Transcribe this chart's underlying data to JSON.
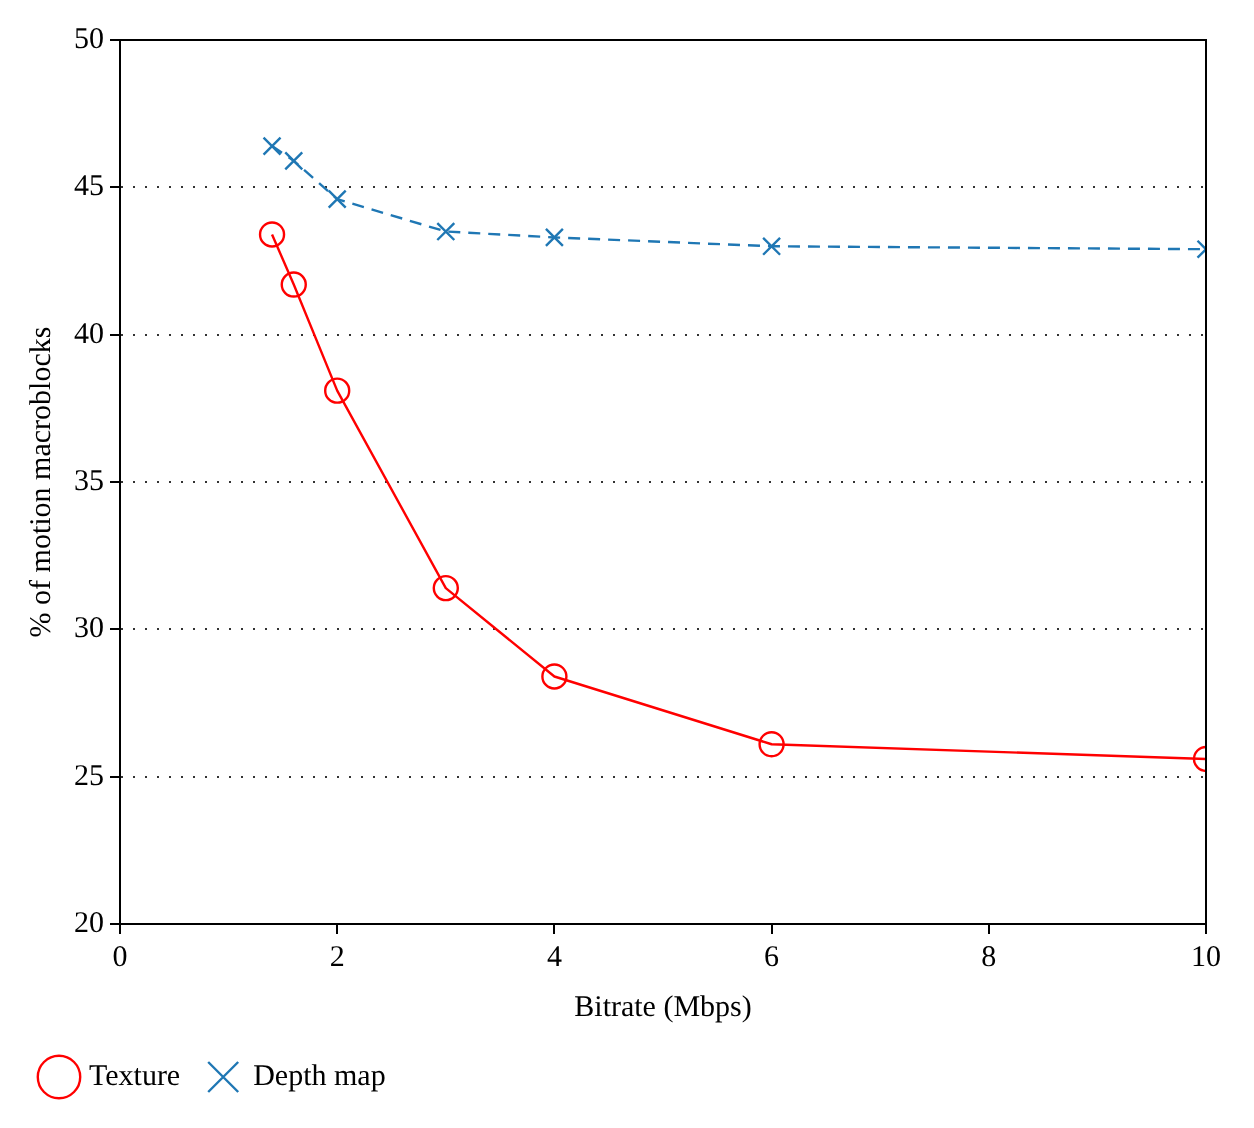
{
  "chart_data": {
    "type": "line",
    "xlabel": "Bitrate (Mbps)",
    "ylabel": "% of motion macroblocks",
    "xlim": [
      0,
      10
    ],
    "xticks": [
      0,
      2,
      4,
      6,
      8,
      10
    ],
    "ylim": [
      20,
      50
    ],
    "yticks": [
      20,
      25,
      30,
      35,
      40,
      45,
      50
    ],
    "grid": "y",
    "legend": "bottom left",
    "series": [
      {
        "name": "Texture",
        "color": "#ff0000",
        "marker": "circle",
        "line_style": "solid",
        "x": [
          1.4,
          1.6,
          2,
          3,
          4,
          6,
          10
        ],
        "values": [
          43.4,
          41.7,
          38.1,
          31.4,
          28.4,
          26.1,
          25.6
        ]
      },
      {
        "name": "Depth map",
        "color": "#1f77b4",
        "marker": "cross",
        "line_style": "dashed",
        "x": [
          1.4,
          1.6,
          2,
          3,
          4,
          6,
          10
        ],
        "values": [
          46.4,
          45.9,
          44.6,
          43.5,
          43.3,
          43.0,
          42.9
        ]
      }
    ]
  }
}
